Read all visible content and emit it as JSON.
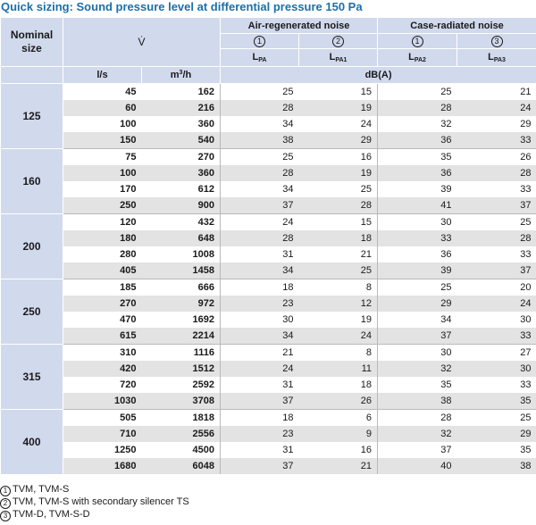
{
  "title": "Quick sizing: Sound pressure level at differential pressure 150 Pa",
  "header": {
    "nominal_size": "Nominal size",
    "flow_symbol": "V̇",
    "air_regenerated": "Air-regenerated noise",
    "case_radiated": "Case-radiated noise",
    "col_markers": [
      "1",
      "2",
      "1",
      "3"
    ],
    "col_symbols": [
      {
        "base": "L",
        "sub": "PA"
      },
      {
        "base": "L",
        "sub": "PA1"
      },
      {
        "base": "L",
        "sub": "PA2"
      },
      {
        "base": "L",
        "sub": "PA3"
      }
    ],
    "unit_ls": "l/s",
    "unit_m3h": {
      "base": "m",
      "sup": "3",
      "rest": "/h"
    },
    "unit_db": "dB(A)"
  },
  "groups": [
    {
      "size": "125",
      "rows": [
        [
          "45",
          "162",
          "25",
          "15",
          "25",
          "21"
        ],
        [
          "60",
          "216",
          "28",
          "19",
          "28",
          "24"
        ],
        [
          "100",
          "360",
          "34",
          "24",
          "32",
          "29"
        ],
        [
          "150",
          "540",
          "38",
          "29",
          "36",
          "33"
        ]
      ]
    },
    {
      "size": "160",
      "rows": [
        [
          "75",
          "270",
          "25",
          "16",
          "35",
          "26"
        ],
        [
          "100",
          "360",
          "28",
          "19",
          "36",
          "28"
        ],
        [
          "170",
          "612",
          "34",
          "25",
          "39",
          "33"
        ],
        [
          "250",
          "900",
          "37",
          "28",
          "41",
          "37"
        ]
      ]
    },
    {
      "size": "200",
      "rows": [
        [
          "120",
          "432",
          "24",
          "15",
          "30",
          "25"
        ],
        [
          "180",
          "648",
          "28",
          "18",
          "33",
          "28"
        ],
        [
          "280",
          "1008",
          "31",
          "21",
          "36",
          "33"
        ],
        [
          "405",
          "1458",
          "34",
          "25",
          "39",
          "37"
        ]
      ]
    },
    {
      "size": "250",
      "rows": [
        [
          "185",
          "666",
          "18",
          "8",
          "25",
          "20"
        ],
        [
          "270",
          "972",
          "23",
          "12",
          "29",
          "24"
        ],
        [
          "470",
          "1692",
          "30",
          "19",
          "34",
          "30"
        ],
        [
          "615",
          "2214",
          "34",
          "24",
          "37",
          "33"
        ]
      ]
    },
    {
      "size": "315",
      "rows": [
        [
          "310",
          "1116",
          "21",
          "8",
          "30",
          "27"
        ],
        [
          "420",
          "1512",
          "24",
          "11",
          "32",
          "30"
        ],
        [
          "720",
          "2592",
          "31",
          "18",
          "35",
          "33"
        ],
        [
          "1030",
          "3708",
          "37",
          "26",
          "38",
          "35"
        ]
      ]
    },
    {
      "size": "400",
      "rows": [
        [
          "505",
          "1818",
          "18",
          "6",
          "28",
          "25"
        ],
        [
          "710",
          "2556",
          "23",
          "9",
          "32",
          "29"
        ],
        [
          "1250",
          "4500",
          "31",
          "16",
          "37",
          "35"
        ],
        [
          "1680",
          "6048",
          "37",
          "21",
          "40",
          "38"
        ]
      ]
    }
  ],
  "notes": [
    {
      "marker": "1",
      "text": "TVM, TVM-S"
    },
    {
      "marker": "2",
      "text": "TVM, TVM-S with secondary silencer TS"
    },
    {
      "marker": "3",
      "text": "TVM-D, TVM-S-D"
    }
  ],
  "colors": {
    "title": "#1d6fa8",
    "header_bg": "#d1d9ed",
    "stripe": "#e3e3e3"
  }
}
